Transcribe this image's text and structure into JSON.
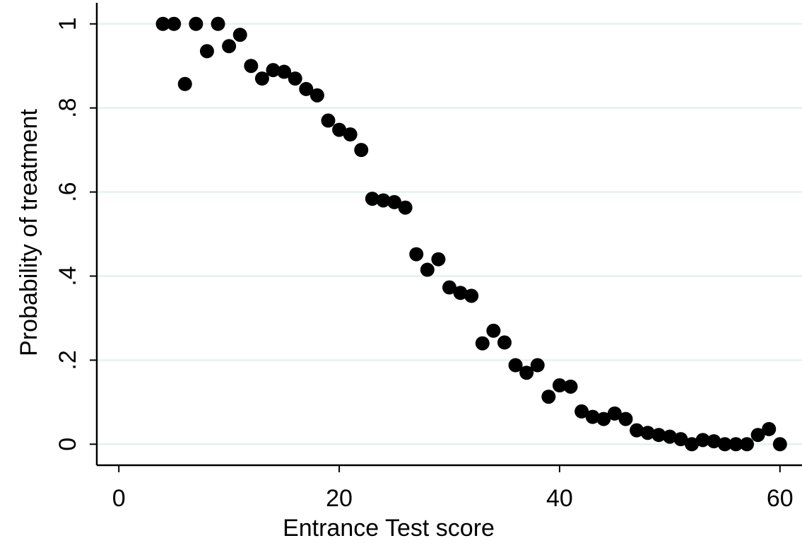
{
  "chart_data": {
    "type": "scatter",
    "title": "",
    "xlabel": "Entrance Test score",
    "ylabel": "Probability of treatment",
    "xlim": [
      -2,
      62
    ],
    "ylim": [
      -0.05,
      1.04
    ],
    "xticks": [
      0,
      20,
      40,
      60
    ],
    "xtick_labels": [
      "0",
      "20",
      "40",
      "60"
    ],
    "yticks": [
      0,
      0.2,
      0.4,
      0.6,
      0.8,
      1
    ],
    "ytick_labels": [
      "0",
      ".2",
      ".4",
      ".6",
      ".8",
      "1"
    ],
    "grid": "horizontal",
    "legend": "none",
    "colors": {
      "marker": "#000000",
      "grid": "#e3eded",
      "axis": "#000000"
    },
    "series": [
      {
        "x": [
          4,
          5,
          6,
          7,
          8,
          9,
          10,
          11,
          12,
          13,
          14,
          15,
          16,
          17,
          18,
          19,
          20,
          21,
          22,
          23,
          24,
          25,
          26,
          27,
          28,
          29,
          30,
          31,
          32,
          33,
          34,
          35,
          36,
          37,
          38,
          39,
          40,
          41,
          42,
          43,
          44,
          45,
          46,
          47,
          48,
          49,
          50,
          51,
          52,
          53,
          54,
          55,
          56,
          57,
          58,
          59,
          60
        ],
        "y": [
          1.0,
          1.0,
          0.857,
          1.0,
          0.935,
          1.0,
          0.947,
          0.974,
          0.9,
          0.87,
          0.89,
          0.886,
          0.87,
          0.845,
          0.83,
          0.77,
          0.748,
          0.737,
          0.7,
          0.584,
          0.58,
          0.576,
          0.563,
          0.452,
          0.415,
          0.44,
          0.373,
          0.36,
          0.353,
          0.24,
          0.27,
          0.242,
          0.188,
          0.17,
          0.188,
          0.113,
          0.14,
          0.137,
          0.078,
          0.065,
          0.06,
          0.073,
          0.06,
          0.033,
          0.027,
          0.022,
          0.018,
          0.012,
          0.0,
          0.01,
          0.007,
          0.0,
          0.0,
          0.0,
          0.022,
          0.036,
          0.0
        ]
      }
    ]
  }
}
